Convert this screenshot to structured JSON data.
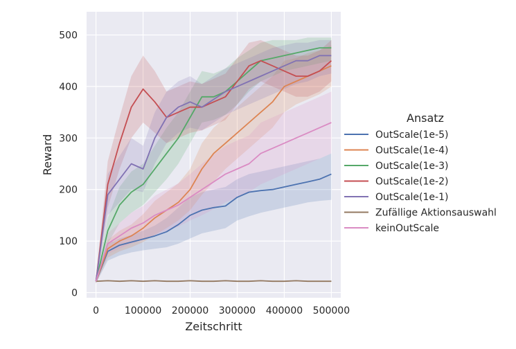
{
  "chart_data": {
    "type": "line",
    "title": "",
    "xlabel": "Zeitschritt",
    "ylabel": "Reward",
    "xlim": [
      -20000,
      520000
    ],
    "ylim": [
      -10,
      545
    ],
    "x_ticks": [
      0,
      100000,
      200000,
      300000,
      400000,
      500000
    ],
    "x_tick_labels": [
      "0",
      "100000",
      "200000",
      "300000",
      "400000",
      "500000"
    ],
    "y_ticks": [
      0,
      100,
      200,
      300,
      400,
      500
    ],
    "y_tick_labels": [
      "0",
      "100",
      "200",
      "300",
      "400",
      "500"
    ],
    "grid": true,
    "background": "#EAEAF2",
    "legend": {
      "title": "Ansatz",
      "placement": "right"
    },
    "x": [
      0,
      25000,
      50000,
      75000,
      100000,
      125000,
      150000,
      175000,
      200000,
      225000,
      250000,
      275000,
      300000,
      325000,
      350000,
      375000,
      400000,
      425000,
      450000,
      475000,
      500000
    ],
    "series": [
      {
        "name": "OutScale(1e-5)",
        "color": "#4C72B0",
        "values": [
          22,
          80,
          92,
          98,
          104,
          110,
          118,
          132,
          150,
          160,
          165,
          168,
          185,
          195,
          198,
          200,
          205,
          210,
          215,
          220,
          230
        ],
        "lower": [
          18,
          62,
          72,
          78,
          82,
          85,
          88,
          95,
          105,
          115,
          120,
          125,
          140,
          148,
          155,
          160,
          165,
          170,
          175,
          178,
          180
        ],
        "upper": [
          26,
          95,
          105,
          112,
          120,
          130,
          145,
          165,
          185,
          195,
          200,
          205,
          220,
          230,
          235,
          240,
          245,
          250,
          255,
          260,
          270
        ]
      },
      {
        "name": "OutScale(1e-4)",
        "color": "#DD8452",
        "values": [
          22,
          85,
          100,
          110,
          125,
          145,
          160,
          175,
          200,
          240,
          270,
          290,
          310,
          330,
          350,
          370,
          400,
          410,
          420,
          430,
          440
        ],
        "lower": [
          18,
          68,
          80,
          88,
          98,
          112,
          125,
          140,
          160,
          190,
          215,
          240,
          260,
          280,
          300,
          320,
          350,
          365,
          375,
          385,
          400
        ],
        "upper": [
          26,
          102,
          120,
          132,
          152,
          178,
          195,
          212,
          240,
          290,
          320,
          340,
          360,
          380,
          400,
          420,
          450,
          455,
          465,
          470,
          480
        ]
      },
      {
        "name": "OutScale(1e-3)",
        "color": "#55A868",
        "values": [
          22,
          120,
          170,
          195,
          210,
          240,
          270,
          300,
          340,
          380,
          380,
          390,
          410,
          430,
          450,
          455,
          460,
          465,
          470,
          475,
          475
        ],
        "lower": [
          18,
          95,
          135,
          155,
          170,
          195,
          220,
          250,
          290,
          330,
          335,
          345,
          365,
          390,
          410,
          420,
          430,
          435,
          440,
          445,
          450
        ],
        "upper": [
          26,
          145,
          205,
          235,
          250,
          285,
          320,
          350,
          390,
          430,
          425,
          435,
          455,
          470,
          485,
          490,
          490,
          490,
          495,
          495,
          495
        ]
      },
      {
        "name": "OutScale(1e-2)",
        "color": "#C44E52",
        "values": [
          22,
          210,
          290,
          360,
          395,
          370,
          340,
          350,
          360,
          360,
          370,
          380,
          410,
          440,
          450,
          440,
          430,
          420,
          420,
          430,
          450
        ],
        "lower": [
          18,
          165,
          240,
          300,
          330,
          310,
          290,
          300,
          310,
          315,
          325,
          335,
          365,
          395,
          410,
          400,
          390,
          380,
          380,
          390,
          410
        ],
        "upper": [
          26,
          255,
          340,
          420,
          460,
          430,
          390,
          400,
          410,
          405,
          415,
          425,
          455,
          485,
          490,
          480,
          470,
          460,
          460,
          470,
          490
        ]
      },
      {
        "name": "OutScale(1e-1)",
        "color": "#8172B3",
        "values": [
          22,
          190,
          220,
          250,
          240,
          300,
          340,
          360,
          370,
          360,
          375,
          390,
          400,
          410,
          420,
          430,
          440,
          450,
          450,
          460,
          460
        ],
        "lower": [
          18,
          150,
          175,
          200,
          195,
          250,
          290,
          310,
          320,
          315,
          330,
          345,
          355,
          365,
          375,
          385,
          395,
          405,
          410,
          420,
          425
        ],
        "upper": [
          26,
          230,
          265,
          300,
          285,
          350,
          390,
          410,
          420,
          405,
          420,
          435,
          445,
          455,
          465,
          475,
          480,
          485,
          485,
          490,
          490
        ]
      },
      {
        "name": "Zufällige Aktionsauswahl",
        "color": "#937860",
        "values": [
          22,
          23,
          22,
          23,
          22,
          23,
          22,
          22,
          23,
          22,
          22,
          23,
          22,
          22,
          23,
          22,
          22,
          23,
          22,
          22,
          22
        ],
        "lower": [
          21,
          22,
          21,
          22,
          21,
          22,
          21,
          21,
          22,
          21,
          21,
          22,
          21,
          21,
          22,
          21,
          21,
          22,
          21,
          21,
          21
        ],
        "upper": [
          23,
          24,
          23,
          24,
          23,
          24,
          23,
          23,
          24,
          23,
          23,
          24,
          23,
          23,
          24,
          23,
          23,
          24,
          23,
          23,
          23
        ]
      },
      {
        "name": "keinOutScale",
        "color": "#DA8BC3",
        "values": [
          22,
          95,
          110,
          125,
          135,
          150,
          160,
          170,
          185,
          200,
          215,
          230,
          240,
          250,
          270,
          280,
          290,
          300,
          310,
          320,
          330
        ],
        "lower": [
          18,
          75,
          85,
          95,
          102,
          112,
          120,
          128,
          140,
          150,
          162,
          175,
          185,
          195,
          210,
          220,
          230,
          240,
          250,
          260,
          270
        ],
        "upper": [
          26,
          115,
          135,
          155,
          168,
          188,
          200,
          212,
          230,
          250,
          268,
          285,
          295,
          305,
          330,
          340,
          350,
          360,
          370,
          380,
          390
        ]
      }
    ]
  }
}
